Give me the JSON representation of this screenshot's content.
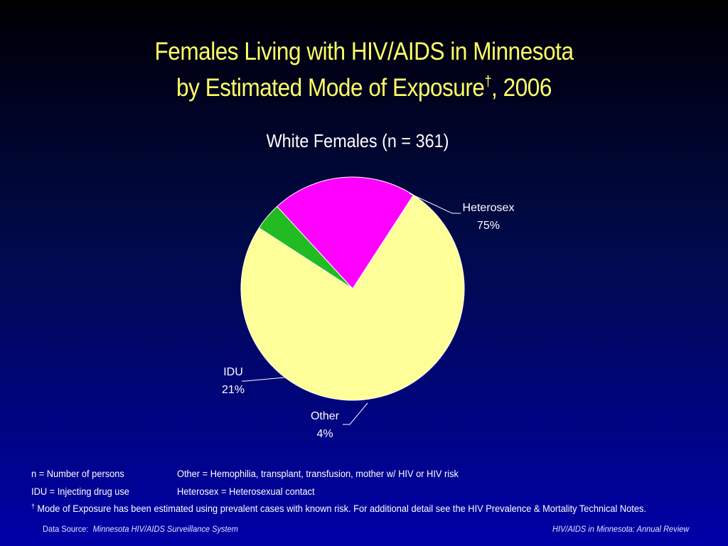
{
  "title": {
    "line1": "Females Living with HIV/AIDS in Minnesota",
    "line2_pre": "by Estimated Mode of Exposure",
    "line2_sup": "†",
    "line2_post": ", 2006"
  },
  "colors": {
    "title": "#ffff66",
    "heterosex": "#ffff99",
    "idu": "#ff00ff",
    "other": "#22bb22"
  },
  "chart_data": {
    "type": "pie",
    "title": "White Females (n = 361)",
    "slices": [
      {
        "label": "Heterosex",
        "value": 75,
        "display": "75%"
      },
      {
        "label": "Other",
        "value": 4,
        "display": "4%"
      },
      {
        "label": "IDU",
        "value": 21,
        "display": "21%"
      }
    ]
  },
  "notes": {
    "n_def": "n = Number of persons",
    "other_def": "Other = Hemophilia, transplant, transfusion, mother w/ HIV or HIV risk",
    "idu_def": "IDU = Injecting drug use",
    "heterosex_def": "Heterosex = Heterosexual contact",
    "dagger": "†",
    "dagger_note": "Mode of Exposure has been estimated using prevalent cases with known risk. For additional detail see the HIV Prevalence & Mortality Technical Notes."
  },
  "footer": {
    "source_label": "Data Source:",
    "source_value": "Minnesota HIV/AIDS Surveillance System",
    "publication": "HIV/AIDS in Minnesota: Annual Review"
  }
}
